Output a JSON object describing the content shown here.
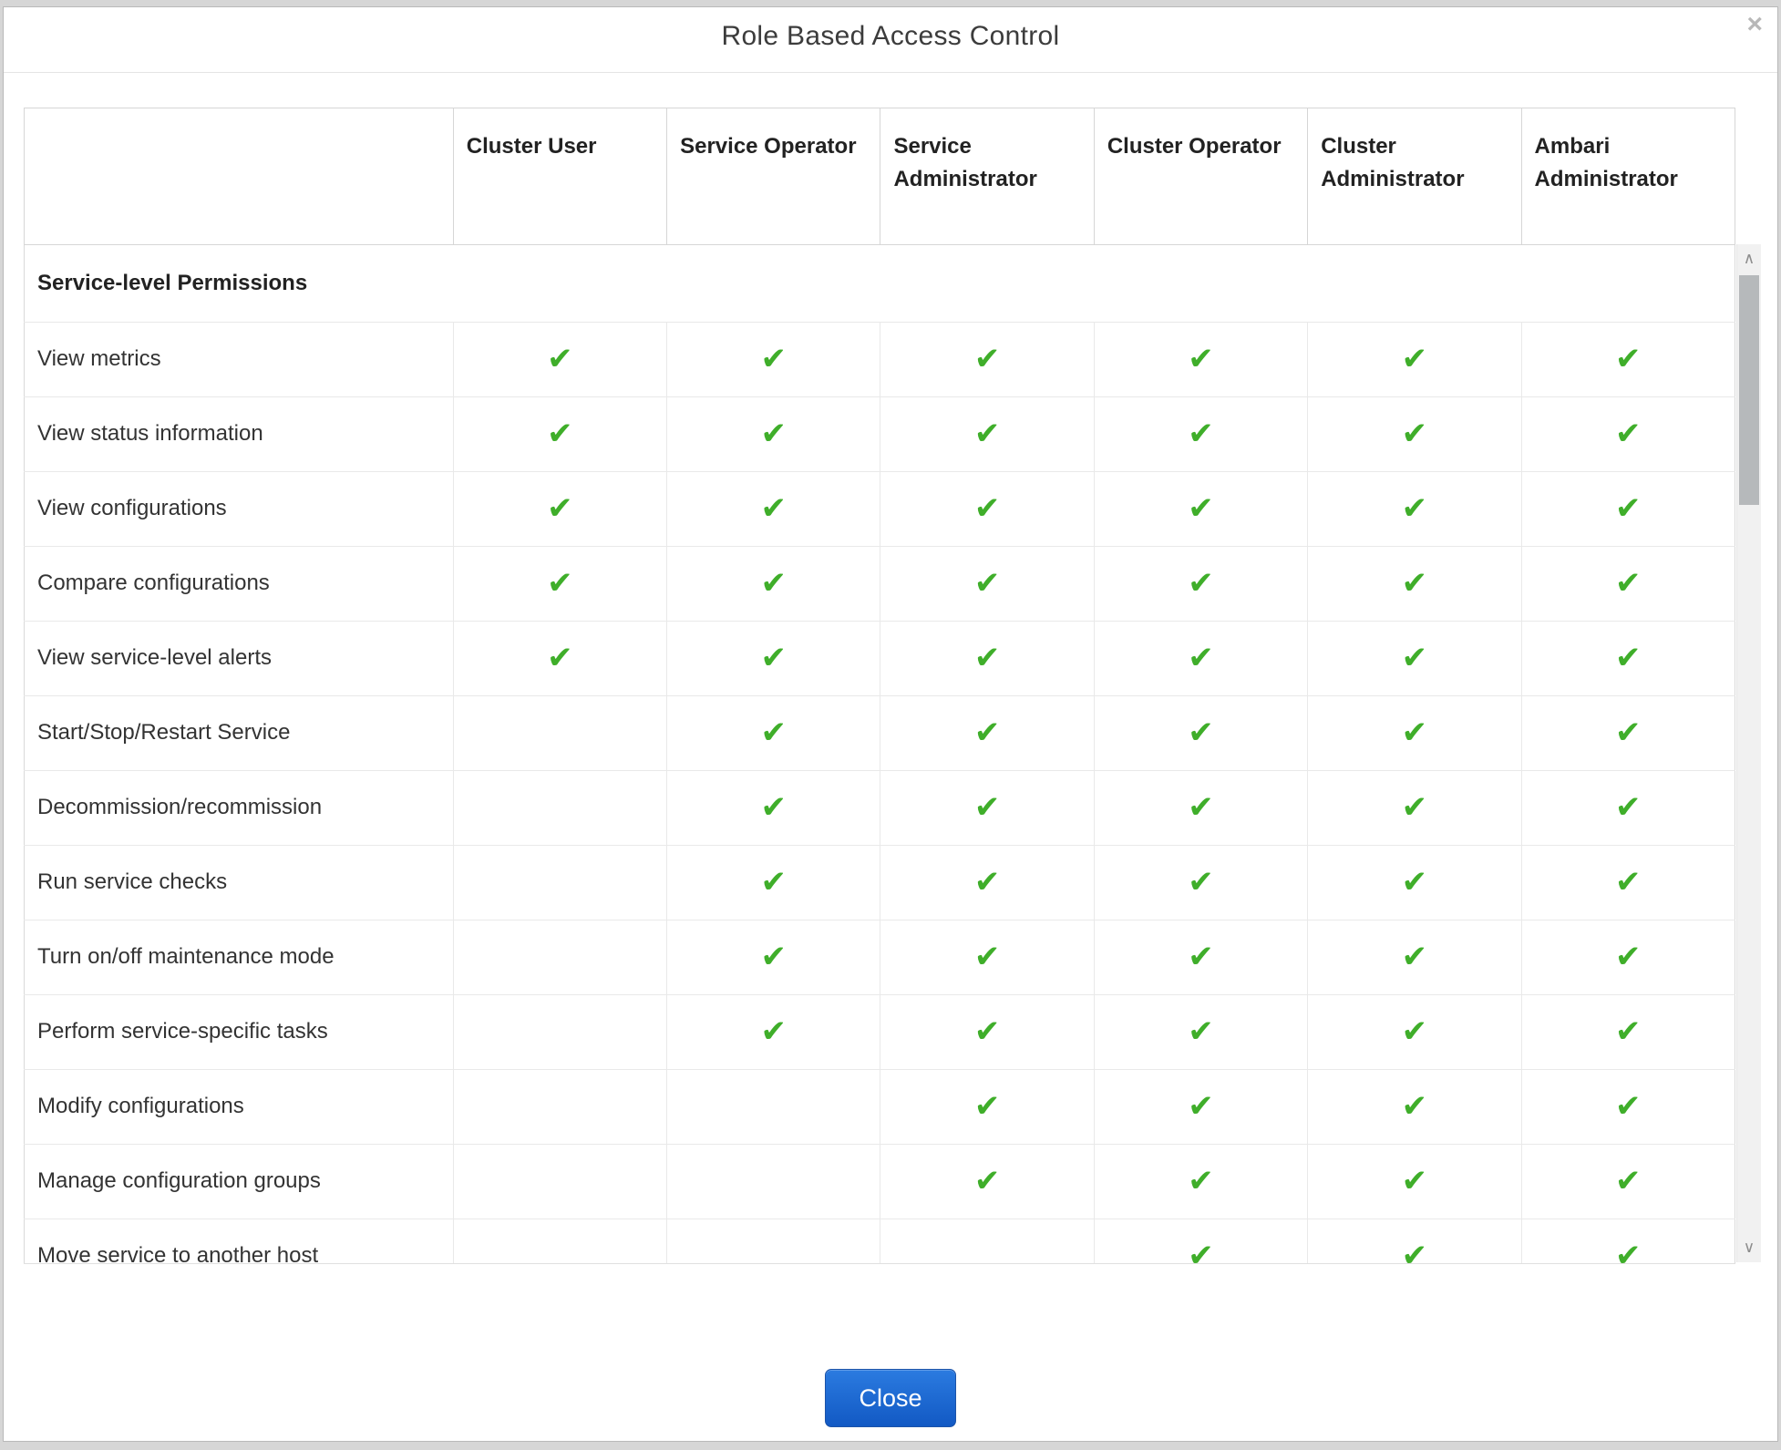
{
  "modal": {
    "title": "Role Based Access Control",
    "close_icon": "×",
    "close_button_label": "Close",
    "button_color": "#1a66c9",
    "check_color": "#3fae2a"
  },
  "table": {
    "columns": [
      "Cluster User",
      "Service Operator",
      "Service Administrator",
      "Cluster Operator",
      "Cluster Administrator",
      "Ambari Administrator"
    ],
    "section_header": "Service-level Permissions",
    "check_glyph": "✔",
    "rows": [
      {
        "label": "View metrics",
        "checks": [
          true,
          true,
          true,
          true,
          true,
          true
        ]
      },
      {
        "label": "View status information",
        "checks": [
          true,
          true,
          true,
          true,
          true,
          true
        ]
      },
      {
        "label": "View configurations",
        "checks": [
          true,
          true,
          true,
          true,
          true,
          true
        ]
      },
      {
        "label": "Compare configurations",
        "checks": [
          true,
          true,
          true,
          true,
          true,
          true
        ]
      },
      {
        "label": "View service-level alerts",
        "checks": [
          true,
          true,
          true,
          true,
          true,
          true
        ]
      },
      {
        "label": "Start/Stop/Restart Service",
        "checks": [
          false,
          true,
          true,
          true,
          true,
          true
        ]
      },
      {
        "label": "Decommission/recommission",
        "checks": [
          false,
          true,
          true,
          true,
          true,
          true
        ]
      },
      {
        "label": "Run service checks",
        "checks": [
          false,
          true,
          true,
          true,
          true,
          true
        ]
      },
      {
        "label": "Turn on/off maintenance mode",
        "checks": [
          false,
          true,
          true,
          true,
          true,
          true
        ]
      },
      {
        "label": "Perform service-specific tasks",
        "checks": [
          false,
          true,
          true,
          true,
          true,
          true
        ]
      },
      {
        "label": "Modify configurations",
        "checks": [
          false,
          false,
          true,
          true,
          true,
          true
        ]
      },
      {
        "label": "Manage configuration groups",
        "checks": [
          false,
          false,
          true,
          true,
          true,
          true
        ]
      },
      {
        "label": "Move service to another host",
        "checks": [
          false,
          false,
          false,
          true,
          true,
          true
        ]
      }
    ]
  },
  "scrollbar": {
    "up_icon": "∧",
    "down_icon": "∨"
  }
}
